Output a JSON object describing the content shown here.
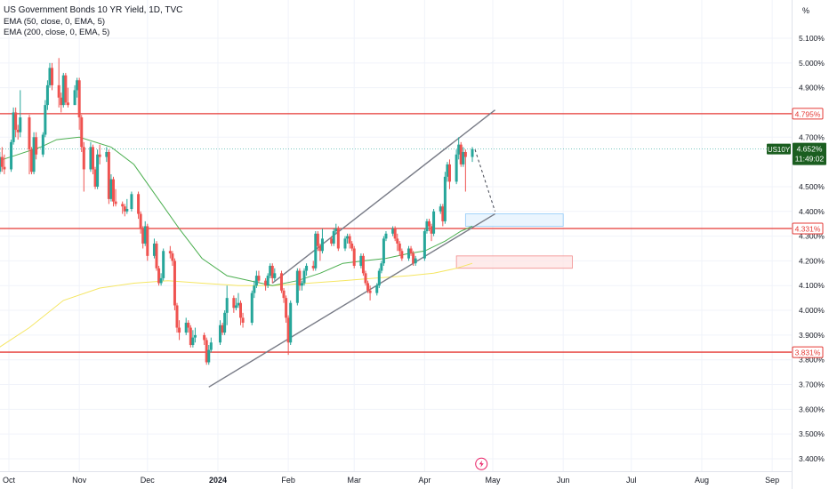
{
  "legend": {
    "title": "US Government Bonds 10 YR Yield, 1D, TVC",
    "ema50": "EMA (50, close, 0, EMA, 5)",
    "ema200": "EMA (200, close, 0, EMA, 5)"
  },
  "price_scale_unit": "%",
  "symbol_badge": "US10Y",
  "countdown": "11:49:02",
  "colors": {
    "up": "#26a69a",
    "down": "#ef5350",
    "ema50": "#4caf50",
    "ema200": "#f5e663",
    "level_line": "#e53935",
    "channel": "#787b86",
    "current_price": "#1b5e20"
  },
  "chart_data": {
    "type": "candlestick",
    "title": "US Government Bonds 10 YR Yield, 1D, TVC",
    "ylim": [
      3.34,
      5.14
    ],
    "y_ticks": [
      "5.100%",
      "5.000%",
      "4.900%",
      "4.700%",
      "4.500%",
      "4.400%",
      "4.300%",
      "4.200%",
      "4.100%",
      "4.000%",
      "3.900%",
      "3.800%",
      "3.700%",
      "3.600%",
      "3.500%",
      "3.400%"
    ],
    "x_ticks": [
      "Oct",
      "Nov",
      "Dec",
      "2024",
      "Feb",
      "Mar",
      "Apr",
      "May",
      "Jun",
      "Jul",
      "Aug",
      "Sep"
    ],
    "x_tick_dates": [
      "2023-10-01",
      "2023-11-01",
      "2023-12-01",
      "2024-01-01",
      "2024-02-01",
      "2024-03-01",
      "2024-04-01",
      "2024-05-01",
      "2024-06-01",
      "2024-07-01",
      "2024-08-01",
      "2024-09-01"
    ],
    "horizontal_levels": [
      {
        "value": 4.795,
        "label": "4.795%"
      },
      {
        "value": 4.331,
        "label": "4.331%"
      },
      {
        "value": 3.831,
        "label": "3.831%"
      }
    ],
    "current_price": {
      "value": 4.652,
      "label": "4.652%"
    },
    "channel": {
      "upper": [
        [
          "2024-01-25",
          4.11
        ],
        [
          "2024-05-02",
          4.81
        ]
      ],
      "lower": [
        [
          "2023-12-28",
          3.69
        ],
        [
          "2024-05-02",
          4.39
        ]
      ]
    },
    "projection": [
      [
        "2024-04-22",
        4.65
      ],
      [
        "2024-05-02",
        4.4
      ]
    ],
    "zones": [
      {
        "color": "blue",
        "x": [
          "2024-04-19",
          "2024-06-01"
        ],
        "y": [
          4.34,
          4.39
        ]
      },
      {
        "color": "red",
        "x": [
          "2024-04-15",
          "2024-06-05"
        ],
        "y": [
          4.17,
          4.22
        ]
      }
    ],
    "event_marker": {
      "date": "2024-04-26",
      "value": 3.39,
      "icon": "lightning-icon"
    },
    "ema50": [
      [
        "2023-09-25",
        4.6
      ],
      [
        "2023-10-05",
        4.63
      ],
      [
        "2023-10-15",
        4.66
      ],
      [
        "2023-10-22",
        4.69
      ],
      [
        "2023-11-01",
        4.7
      ],
      [
        "2023-11-15",
        4.66
      ],
      [
        "2023-11-25",
        4.59
      ],
      [
        "2023-12-05",
        4.46
      ],
      [
        "2023-12-15",
        4.33
      ],
      [
        "2023-12-25",
        4.21
      ],
      [
        "2024-01-05",
        4.14
      ],
      [
        "2024-01-15",
        4.12
      ],
      [
        "2024-01-25",
        4.1
      ],
      [
        "2024-02-05",
        4.12
      ],
      [
        "2024-02-15",
        4.15
      ],
      [
        "2024-02-25",
        4.19
      ],
      [
        "2024-03-05",
        4.2
      ],
      [
        "2024-03-15",
        4.21
      ],
      [
        "2024-03-25",
        4.23
      ],
      [
        "2024-04-01",
        4.24
      ],
      [
        "2024-04-10",
        4.28
      ],
      [
        "2024-04-17",
        4.32
      ],
      [
        "2024-04-22",
        4.34
      ]
    ],
    "ema200": [
      [
        "2023-09-25",
        3.84
      ],
      [
        "2023-10-10",
        3.93
      ],
      [
        "2023-10-25",
        4.04
      ],
      [
        "2023-11-10",
        4.09
      ],
      [
        "2023-11-25",
        4.11
      ],
      [
        "2023-12-10",
        4.12
      ],
      [
        "2023-12-25",
        4.11
      ],
      [
        "2024-01-10",
        4.1
      ],
      [
        "2024-01-25",
        4.1
      ],
      [
        "2024-02-10",
        4.11
      ],
      [
        "2024-02-25",
        4.12
      ],
      [
        "2024-03-10",
        4.13
      ],
      [
        "2024-03-25",
        4.14
      ],
      [
        "2024-04-05",
        4.15
      ],
      [
        "2024-04-15",
        4.17
      ],
      [
        "2024-04-22",
        4.19
      ]
    ],
    "candles": [
      [
        "2023-09-25",
        4.53,
        4.57,
        4.52,
        4.55
      ],
      [
        "2023-09-26",
        4.55,
        4.57,
        4.52,
        4.56
      ],
      [
        "2023-09-27",
        4.56,
        4.64,
        4.55,
        4.62
      ],
      [
        "2023-09-28",
        4.62,
        4.66,
        4.56,
        4.58
      ],
      [
        "2023-09-29",
        4.58,
        4.63,
        4.55,
        4.57
      ],
      [
        "2023-10-02",
        4.57,
        4.69,
        4.56,
        4.68
      ],
      [
        "2023-10-03",
        4.68,
        4.82,
        4.67,
        4.8
      ],
      [
        "2023-10-04",
        4.8,
        4.82,
        4.7,
        4.73
      ],
      [
        "2023-10-05",
        4.73,
        4.75,
        4.69,
        4.72
      ],
      [
        "2023-10-06",
        4.72,
        4.89,
        4.7,
        4.78
      ],
      [
        "2023-10-10",
        4.78,
        4.79,
        4.55,
        4.65
      ],
      [
        "2023-10-11",
        4.65,
        4.66,
        4.55,
        4.56
      ],
      [
        "2023-10-12",
        4.56,
        4.72,
        4.55,
        4.7
      ],
      [
        "2023-10-13",
        4.7,
        4.72,
        4.61,
        4.63
      ],
      [
        "2023-10-16",
        4.63,
        4.72,
        4.62,
        4.71
      ],
      [
        "2023-10-17",
        4.71,
        4.85,
        4.7,
        4.83
      ],
      [
        "2023-10-18",
        4.83,
        4.93,
        4.81,
        4.91
      ],
      [
        "2023-10-19",
        4.91,
        5.0,
        4.9,
        4.98
      ],
      [
        "2023-10-20",
        4.98,
        5.0,
        4.89,
        4.91
      ],
      [
        "2023-10-23",
        4.91,
        5.02,
        4.82,
        4.86
      ],
      [
        "2023-10-24",
        4.86,
        4.88,
        4.8,
        4.83
      ],
      [
        "2023-10-25",
        4.83,
        4.96,
        4.82,
        4.95
      ],
      [
        "2023-10-26",
        4.95,
        4.96,
        4.83,
        4.84
      ],
      [
        "2023-10-27",
        4.84,
        4.9,
        4.82,
        4.83
      ],
      [
        "2023-10-30",
        4.83,
        4.91,
        4.83,
        4.89
      ],
      [
        "2023-10-31",
        4.89,
        4.94,
        4.86,
        4.93
      ],
      [
        "2023-11-01",
        4.93,
        4.94,
        4.73,
        4.78
      ],
      [
        "2023-11-02",
        4.78,
        4.79,
        4.64,
        4.66
      ],
      [
        "2023-11-03",
        4.66,
        4.68,
        4.48,
        4.57
      ],
      [
        "2023-11-06",
        4.57,
        4.68,
        4.56,
        4.66
      ],
      [
        "2023-11-07",
        4.66,
        4.67,
        4.55,
        4.57
      ],
      [
        "2023-11-08",
        4.57,
        4.58,
        4.49,
        4.5
      ],
      [
        "2023-11-09",
        4.5,
        4.65,
        4.49,
        4.63
      ],
      [
        "2023-11-10",
        4.63,
        4.67,
        4.59,
        4.62
      ],
      [
        "2023-11-13",
        4.62,
        4.66,
        4.6,
        4.64
      ],
      [
        "2023-11-14",
        4.64,
        4.65,
        4.43,
        4.45
      ],
      [
        "2023-11-15",
        4.45,
        4.55,
        4.44,
        4.53
      ],
      [
        "2023-11-16",
        4.53,
        4.54,
        4.42,
        4.44
      ],
      [
        "2023-11-17",
        4.44,
        4.49,
        4.42,
        4.43
      ],
      [
        "2023-11-20",
        4.43,
        4.44,
        4.39,
        4.42
      ],
      [
        "2023-11-21",
        4.42,
        4.43,
        4.38,
        4.4
      ],
      [
        "2023-11-22",
        4.4,
        4.45,
        4.39,
        4.41
      ],
      [
        "2023-11-24",
        4.41,
        4.48,
        4.4,
        4.47
      ],
      [
        "2023-11-27",
        4.47,
        4.48,
        4.37,
        4.39
      ],
      [
        "2023-11-28",
        4.39,
        4.4,
        4.31,
        4.33
      ],
      [
        "2023-11-29",
        4.33,
        4.34,
        4.25,
        4.27
      ],
      [
        "2023-11-30",
        4.27,
        4.36,
        4.26,
        4.34
      ],
      [
        "2023-12-01",
        4.34,
        4.35,
        4.2,
        4.22
      ],
      [
        "2023-12-04",
        4.22,
        4.29,
        4.21,
        4.27
      ],
      [
        "2023-12-05",
        4.27,
        4.28,
        4.16,
        4.17
      ],
      [
        "2023-12-06",
        4.17,
        4.18,
        4.1,
        4.11
      ],
      [
        "2023-12-07",
        4.11,
        4.15,
        4.1,
        4.13
      ],
      [
        "2023-12-08",
        4.13,
        4.25,
        4.12,
        4.24
      ],
      [
        "2023-12-11",
        4.24,
        4.26,
        4.21,
        4.23
      ],
      [
        "2023-12-12",
        4.23,
        4.24,
        4.18,
        4.2
      ],
      [
        "2023-12-13",
        4.2,
        4.21,
        4.0,
        4.02
      ],
      [
        "2023-12-14",
        4.02,
        4.03,
        3.91,
        3.93
      ],
      [
        "2023-12-15",
        3.93,
        3.96,
        3.88,
        3.91
      ],
      [
        "2023-12-18",
        3.91,
        3.97,
        3.9,
        3.95
      ],
      [
        "2023-12-19",
        3.95,
        3.96,
        3.91,
        3.93
      ],
      [
        "2023-12-20",
        3.93,
        3.94,
        3.85,
        3.86
      ],
      [
        "2023-12-21",
        3.86,
        3.92,
        3.85,
        3.89
      ],
      [
        "2023-12-22",
        3.89,
        3.93,
        3.87,
        3.9
      ],
      [
        "2023-12-26",
        3.9,
        3.91,
        3.86,
        3.88
      ],
      [
        "2023-12-27",
        3.88,
        3.89,
        3.78,
        3.79
      ],
      [
        "2023-12-28",
        3.79,
        3.86,
        3.78,
        3.84
      ],
      [
        "2023-12-29",
        3.84,
        3.89,
        3.83,
        3.87
      ],
      [
        "2024-01-02",
        3.87,
        3.96,
        3.86,
        3.94
      ],
      [
        "2024-01-03",
        3.94,
        3.95,
        3.9,
        3.91
      ],
      [
        "2024-01-04",
        3.91,
        4.0,
        3.9,
        3.99
      ],
      [
        "2024-01-05",
        3.99,
        4.1,
        3.94,
        4.05
      ],
      [
        "2024-01-08",
        4.05,
        4.06,
        3.99,
        4.01
      ],
      [
        "2024-01-09",
        4.01,
        4.05,
        4.0,
        4.02
      ],
      [
        "2024-01-10",
        4.02,
        4.07,
        4.01,
        4.03
      ],
      [
        "2024-01-11",
        4.03,
        4.04,
        3.94,
        3.97
      ],
      [
        "2024-01-12",
        3.97,
        3.99,
        3.93,
        3.95
      ],
      [
        "2024-01-16",
        3.95,
        4.08,
        3.94,
        4.07
      ],
      [
        "2024-01-17",
        4.07,
        4.12,
        4.05,
        4.1
      ],
      [
        "2024-01-18",
        4.1,
        4.16,
        4.09,
        4.14
      ],
      [
        "2024-01-19",
        4.14,
        4.16,
        4.11,
        4.12
      ],
      [
        "2024-01-22",
        4.12,
        4.13,
        4.08,
        4.1
      ],
      [
        "2024-01-23",
        4.1,
        4.15,
        4.09,
        4.14
      ],
      [
        "2024-01-24",
        4.14,
        4.19,
        4.13,
        4.18
      ],
      [
        "2024-01-25",
        4.18,
        4.19,
        4.11,
        4.13
      ],
      [
        "2024-01-26",
        4.13,
        4.17,
        4.12,
        4.15
      ],
      [
        "2024-01-29",
        4.15,
        4.16,
        4.07,
        4.08
      ],
      [
        "2024-01-30",
        4.08,
        4.09,
        4.03,
        4.05
      ],
      [
        "2024-01-31",
        4.05,
        4.06,
        3.95,
        3.97
      ],
      [
        "2024-02-01",
        3.97,
        3.98,
        3.82,
        3.87
      ],
      [
        "2024-02-02",
        3.87,
        4.04,
        3.86,
        4.03
      ],
      [
        "2024-02-05",
        4.03,
        4.17,
        4.02,
        4.16
      ],
      [
        "2024-02-06",
        4.16,
        4.17,
        4.08,
        4.1
      ],
      [
        "2024-02-07",
        4.1,
        4.12,
        4.08,
        4.11
      ],
      [
        "2024-02-08",
        4.11,
        4.17,
        4.1,
        4.16
      ],
      [
        "2024-02-09",
        4.16,
        4.19,
        4.14,
        4.18
      ],
      [
        "2024-02-12",
        4.18,
        4.2,
        4.16,
        4.17
      ],
      [
        "2024-02-13",
        4.17,
        4.32,
        4.16,
        4.31
      ],
      [
        "2024-02-14",
        4.31,
        4.32,
        4.24,
        4.26
      ],
      [
        "2024-02-15",
        4.26,
        4.27,
        4.2,
        4.24
      ],
      [
        "2024-02-16",
        4.24,
        4.33,
        4.23,
        4.29
      ],
      [
        "2024-02-20",
        4.29,
        4.3,
        4.26,
        4.27
      ],
      [
        "2024-02-21",
        4.27,
        4.33,
        4.26,
        4.32
      ],
      [
        "2024-02-22",
        4.32,
        4.35,
        4.31,
        4.33
      ],
      [
        "2024-02-23",
        4.33,
        4.34,
        4.24,
        4.25
      ],
      [
        "2024-02-26",
        4.25,
        4.3,
        4.24,
        4.29
      ],
      [
        "2024-02-27",
        4.29,
        4.31,
        4.27,
        4.3
      ],
      [
        "2024-02-28",
        4.3,
        4.31,
        4.25,
        4.27
      ],
      [
        "2024-02-29",
        4.27,
        4.28,
        4.24,
        4.25
      ],
      [
        "2024-03-01",
        4.25,
        4.26,
        4.17,
        4.18
      ],
      [
        "2024-03-04",
        4.18,
        4.23,
        4.17,
        4.22
      ],
      [
        "2024-03-05",
        4.22,
        4.23,
        4.14,
        4.15
      ],
      [
        "2024-03-06",
        4.15,
        4.16,
        4.1,
        4.11
      ],
      [
        "2024-03-07",
        4.11,
        4.12,
        4.07,
        4.08
      ],
      [
        "2024-03-08",
        4.08,
        4.1,
        4.04,
        4.07
      ],
      [
        "2024-03-11",
        4.07,
        4.11,
        4.06,
        4.1
      ],
      [
        "2024-03-12",
        4.1,
        4.17,
        4.09,
        4.16
      ],
      [
        "2024-03-13",
        4.16,
        4.2,
        4.15,
        4.19
      ],
      [
        "2024-03-14",
        4.19,
        4.3,
        4.18,
        4.29
      ],
      [
        "2024-03-15",
        4.29,
        4.32,
        4.28,
        4.31
      ],
      [
        "2024-03-18",
        4.31,
        4.34,
        4.3,
        4.33
      ],
      [
        "2024-03-19",
        4.33,
        4.34,
        4.28,
        4.29
      ],
      [
        "2024-03-20",
        4.29,
        4.31,
        4.24,
        4.27
      ],
      [
        "2024-03-21",
        4.27,
        4.28,
        4.22,
        4.24
      ],
      [
        "2024-03-22",
        4.24,
        4.25,
        4.2,
        4.21
      ],
      [
        "2024-03-25",
        4.21,
        4.26,
        4.2,
        4.25
      ],
      [
        "2024-03-26",
        4.25,
        4.26,
        4.22,
        4.23
      ],
      [
        "2024-03-27",
        4.23,
        4.24,
        4.18,
        4.19
      ],
      [
        "2024-03-28",
        4.19,
        4.22,
        4.18,
        4.21
      ],
      [
        "2024-04-01",
        4.21,
        4.33,
        4.2,
        4.32
      ],
      [
        "2024-04-02",
        4.32,
        4.37,
        4.31,
        4.36
      ],
      [
        "2024-04-03",
        4.36,
        4.37,
        4.32,
        4.34
      ],
      [
        "2024-04-04",
        4.34,
        4.35,
        4.28,
        4.31
      ],
      [
        "2024-04-05",
        4.31,
        4.41,
        4.3,
        4.4
      ],
      [
        "2024-04-08",
        4.4,
        4.43,
        4.39,
        4.42
      ],
      [
        "2024-04-09",
        4.42,
        4.43,
        4.34,
        4.36
      ],
      [
        "2024-04-10",
        4.36,
        4.56,
        4.35,
        4.54
      ],
      [
        "2024-04-11",
        4.54,
        4.6,
        4.52,
        4.59
      ],
      [
        "2024-04-12",
        4.59,
        4.61,
        4.49,
        4.52
      ],
      [
        "2024-04-15",
        4.52,
        4.65,
        4.51,
        4.63
      ],
      [
        "2024-04-16",
        4.63,
        4.7,
        4.61,
        4.67
      ],
      [
        "2024-04-17",
        4.67,
        4.68,
        4.58,
        4.59
      ],
      [
        "2024-04-18",
        4.59,
        4.66,
        4.58,
        4.64
      ],
      [
        "2024-04-19",
        4.64,
        4.65,
        4.48,
        4.62
      ],
      [
        "2024-04-22",
        4.62,
        4.66,
        4.6,
        4.652
      ]
    ]
  }
}
